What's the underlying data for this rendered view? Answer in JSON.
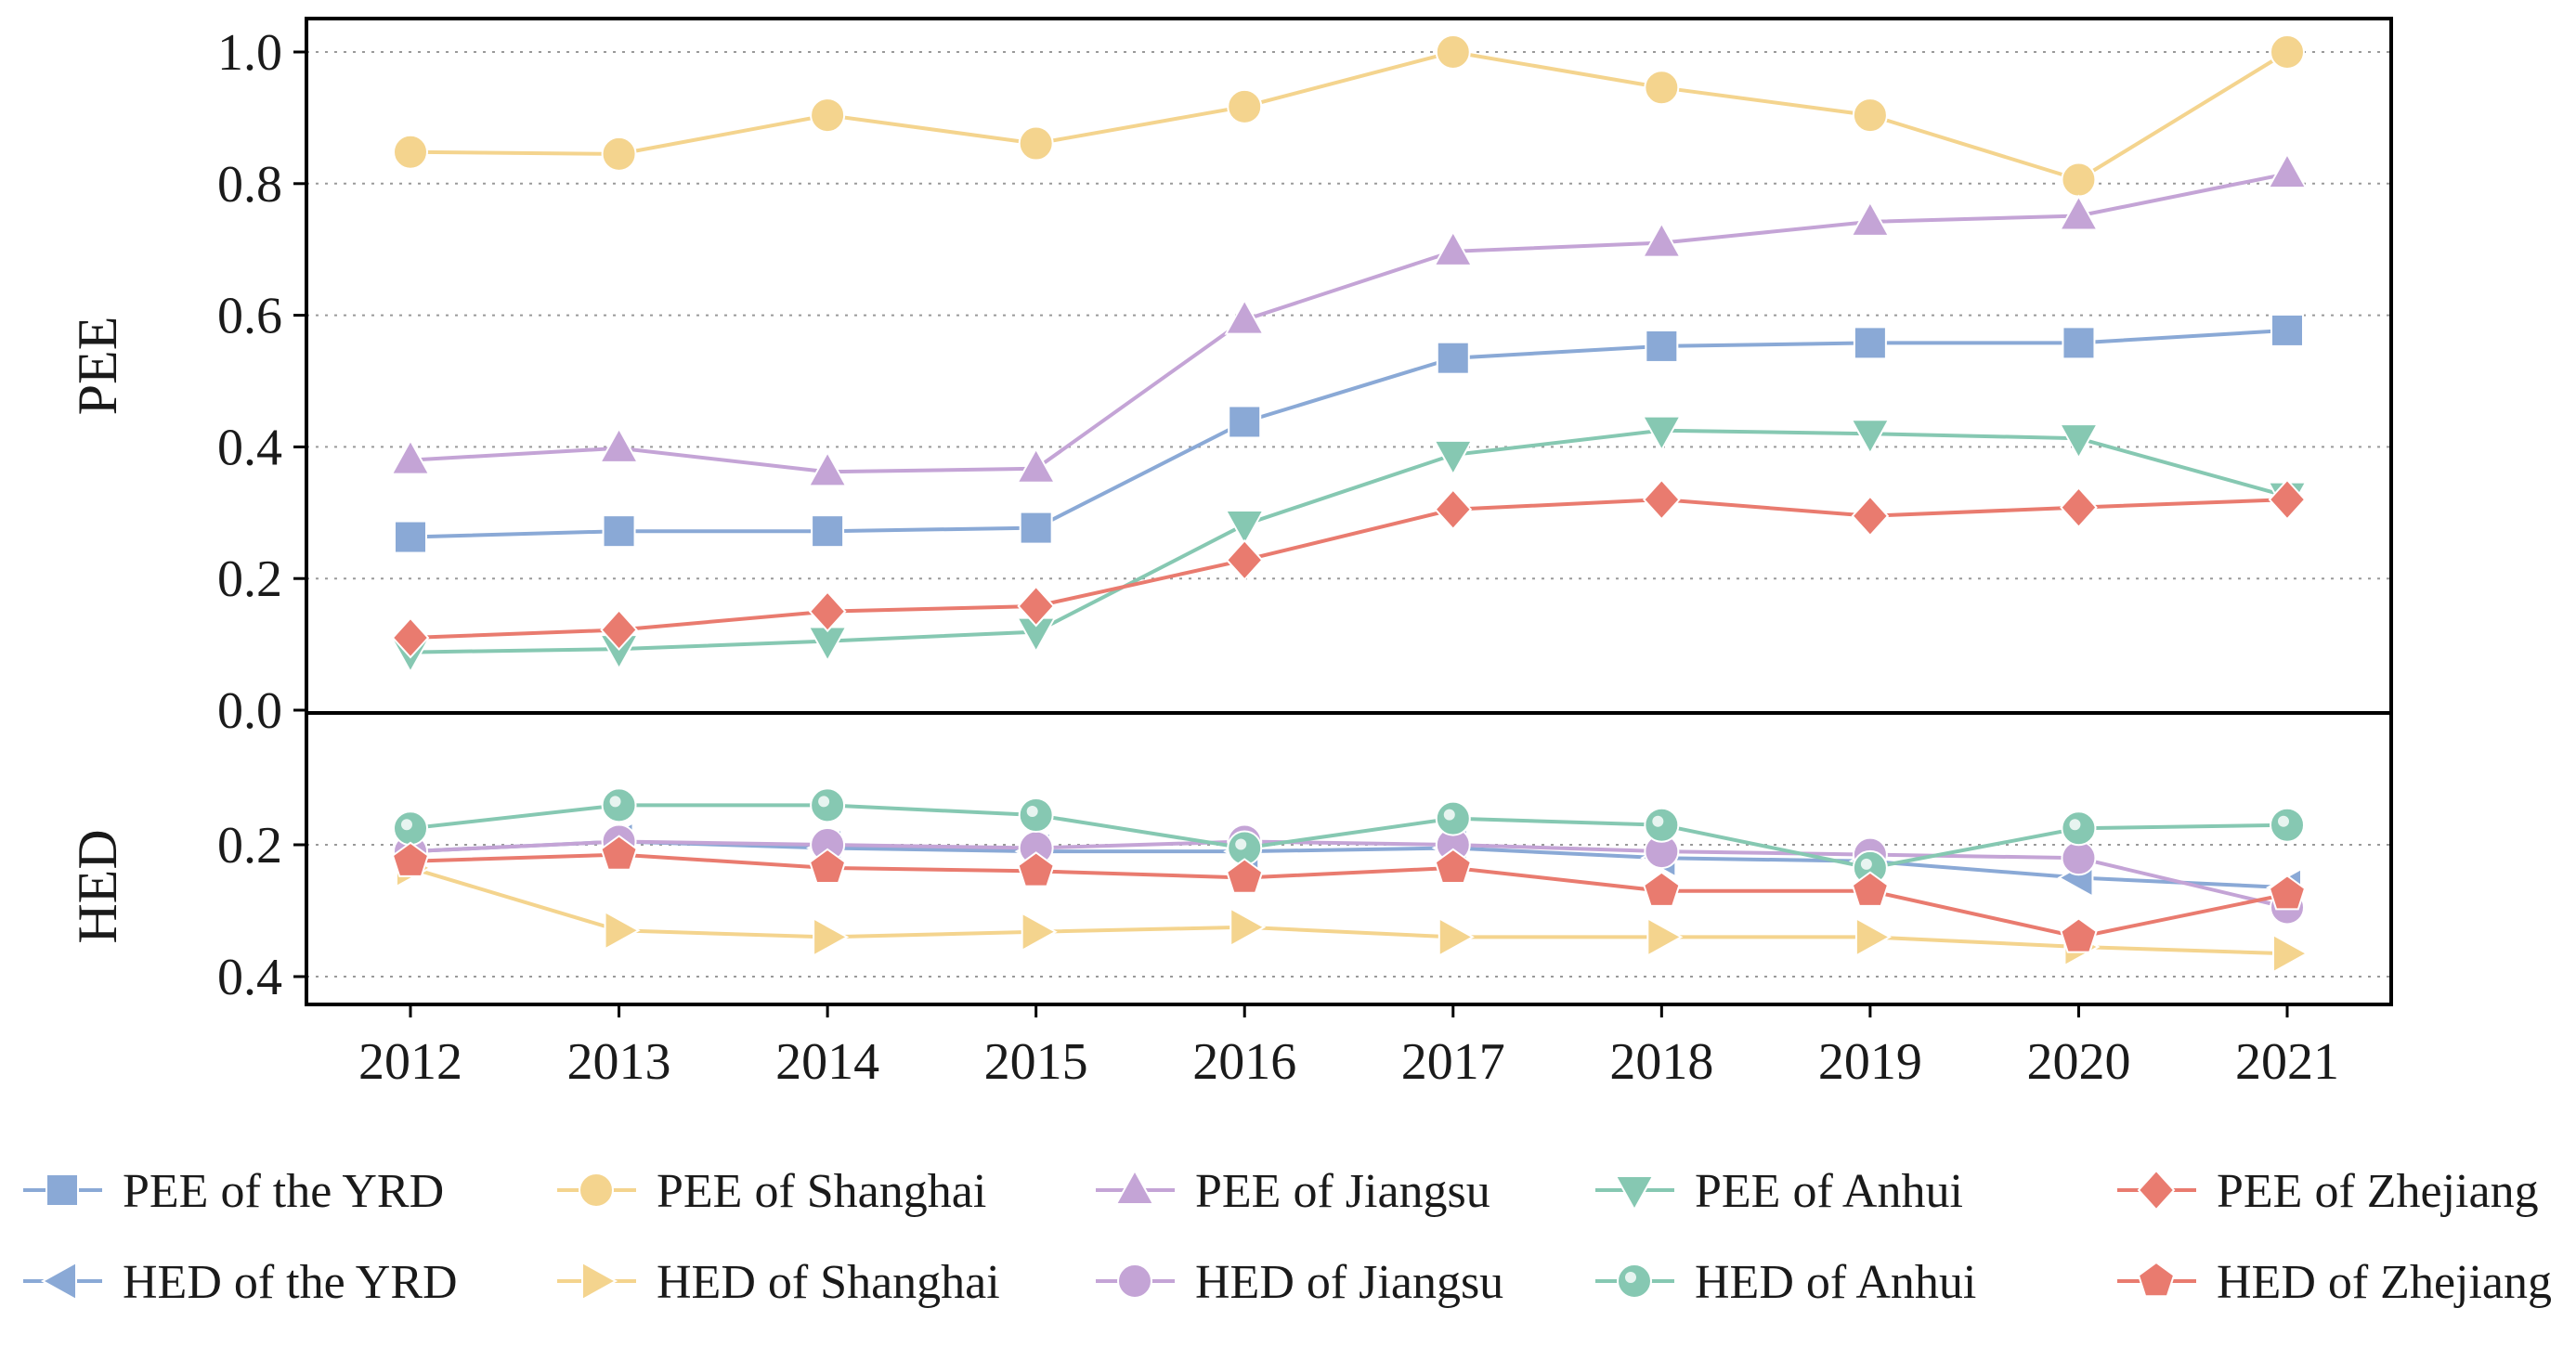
{
  "chart_data": {
    "type": "line",
    "years": [
      "2012",
      "2013",
      "2014",
      "2015",
      "2016",
      "2017",
      "2018",
      "2019",
      "2020",
      "2021"
    ],
    "top_panel": {
      "ylabel": "PEE",
      "ylim": [
        0,
        1.0
      ],
      "yticks": [
        "0.0",
        "0.2",
        "0.4",
        "0.6",
        "0.8",
        "1.0"
      ],
      "grid": "dotted horizontal",
      "series": [
        {
          "name": "PEE of the YRD",
          "marker": "square",
          "color": "#8aa9d6",
          "values": [
            0.263,
            0.272,
            0.272,
            0.277,
            0.438,
            0.535,
            0.553,
            0.558,
            0.558,
            0.577
          ]
        },
        {
          "name": "PEE of Shanghai",
          "marker": "circle",
          "color": "#f4d48e",
          "values": [
            0.848,
            0.845,
            0.904,
            0.861,
            0.917,
            1.0,
            0.946,
            0.904,
            0.806,
            1.0
          ]
        },
        {
          "name": "PEE of Jiangsu",
          "marker": "triangle-up",
          "color": "#c4a4d6",
          "values": [
            0.38,
            0.398,
            0.362,
            0.367,
            0.593,
            0.697,
            0.71,
            0.742,
            0.751,
            0.815
          ]
        },
        {
          "name": "PEE of Anhui",
          "marker": "triangle-down",
          "color": "#86c8b2",
          "values": [
            0.088,
            0.093,
            0.105,
            0.119,
            0.282,
            0.388,
            0.425,
            0.42,
            0.413,
            0.325
          ]
        },
        {
          "name": "PEE of Zhejiang",
          "marker": "diamond",
          "color": "#e97b6f",
          "values": [
            0.11,
            0.122,
            0.15,
            0.158,
            0.228,
            0.305,
            0.32,
            0.295,
            0.308,
            0.32
          ]
        }
      ]
    },
    "bottom_panel": {
      "ylabel": "HED",
      "ylim": [
        0,
        0.44
      ],
      "inverted": true,
      "yticks": [
        "0.2",
        "0.4"
      ],
      "grid": "dotted horizontal",
      "series": [
        {
          "name": "HED of the YRD",
          "marker": "triangle-left",
          "color": "#8aa9d6",
          "values": [
            0.21,
            0.195,
            0.205,
            0.21,
            0.21,
            0.205,
            0.22,
            0.225,
            0.25,
            0.265
          ]
        },
        {
          "name": "HED of Shanghai",
          "marker": "triangle-right",
          "color": "#f4d48e",
          "values": [
            0.235,
            0.33,
            0.34,
            0.332,
            0.325,
            0.34,
            0.34,
            0.34,
            0.355,
            0.365
          ]
        },
        {
          "name": "HED of Jiangsu",
          "marker": "circle",
          "color": "#c4a4d6",
          "values": [
            0.21,
            0.195,
            0.2,
            0.205,
            0.195,
            0.2,
            0.21,
            0.215,
            0.22,
            0.295
          ]
        },
        {
          "name": "HED of Anhui",
          "marker": "circle-dot",
          "color": "#86c8b2",
          "values": [
            0.175,
            0.14,
            0.14,
            0.155,
            0.205,
            0.16,
            0.17,
            0.235,
            0.175,
            0.17
          ]
        },
        {
          "name": "HED of Zhejiang",
          "marker": "pentagon",
          "color": "#e97b6f",
          "values": [
            0.225,
            0.215,
            0.235,
            0.24,
            0.25,
            0.235,
            0.27,
            0.27,
            0.34,
            0.275
          ]
        }
      ]
    },
    "legend": {
      "placement": "bottom",
      "rows": [
        [
          "PEE of the YRD",
          "PEE of Shanghai",
          "PEE of Jiangsu",
          "PEE of Anhui",
          "PEE of Zhejiang"
        ],
        [
          "HED of the YRD",
          "HED of Shanghai",
          "HED of Jiangsu",
          "HED of Anhui",
          "HED of Zhejiang"
        ]
      ]
    }
  }
}
